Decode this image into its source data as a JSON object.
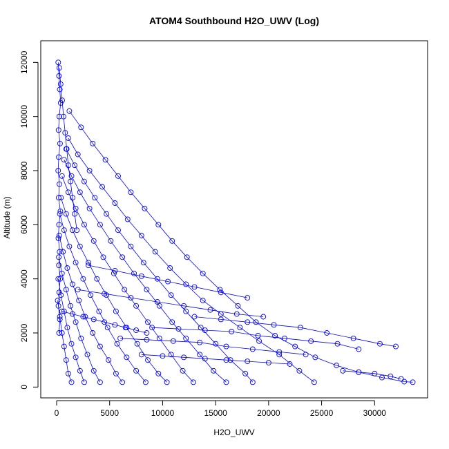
{
  "chart_data": {
    "type": "scatter",
    "title": "ATOM4 Southbound H2O_UWV (Log)",
    "xlabel": "H2O_UWV",
    "ylabel": "Altitude (m)",
    "xlim": [
      -1500,
      35000
    ],
    "ylim": [
      -400,
      12800
    ],
    "xticks": [
      0,
      5000,
      10000,
      15000,
      20000,
      25000,
      30000
    ],
    "yticks": [
      0,
      2000,
      4000,
      6000,
      8000,
      10000,
      12000
    ],
    "grid": false,
    "legend": "none",
    "marker": "open-circle",
    "connected": true,
    "color": "#0000ff",
    "series": [
      {
        "x": [
          1200,
          2300,
          3400,
          4600,
          5800,
          7000,
          8300,
          9600,
          10900,
          12300,
          13800,
          15400,
          17100,
          18800,
          20600,
          22500,
          24400,
          26400,
          28500,
          30700,
          32800,
          33600
        ],
        "y": [
          10200,
          9600,
          9000,
          8400,
          7800,
          7200,
          6600,
          6000,
          5400,
          4800,
          4200,
          3600,
          3000,
          2400,
          1900,
          1500,
          1100,
          800,
          550,
          350,
          200,
          180
        ]
      },
      {
        "x": [
          1100,
          2000,
          3100,
          4300,
          5500,
          6700,
          8000,
          9300,
          10700,
          12200,
          13800,
          15500,
          17300,
          19100,
          21000,
          22900,
          24300
        ],
        "y": [
          9200,
          8600,
          8000,
          7400,
          6800,
          6200,
          5600,
          5000,
          4400,
          3800,
          3200,
          2700,
          2200,
          1700,
          1200,
          600,
          180
        ]
      },
      {
        "x": [
          900,
          1700,
          2600,
          3600,
          4700,
          5800,
          7000,
          8200,
          9500,
          10800,
          12200,
          13600,
          15000,
          16400,
          17800,
          18500
        ],
        "y": [
          8800,
          8200,
          7600,
          7000,
          6400,
          5800,
          5200,
          4600,
          4000,
          3400,
          2800,
          2200,
          1600,
          1000,
          500,
          180
        ]
      },
      {
        "x": [
          700,
          1400,
          2200,
          3100,
          4100,
          5100,
          6200,
          7300,
          8500,
          9700,
          10900,
          12200,
          13500,
          14800,
          16000
        ],
        "y": [
          8400,
          7800,
          7200,
          6600,
          6000,
          5400,
          4800,
          4200,
          3600,
          3000,
          2400,
          1800,
          1200,
          600,
          180
        ]
      },
      {
        "x": [
          500,
          1100,
          1800,
          2600,
          3500,
          4400,
          5400,
          6400,
          7500,
          8600,
          9700,
          10800,
          11900,
          12900
        ],
        "y": [
          7800,
          7200,
          6600,
          6000,
          5400,
          4800,
          4200,
          3600,
          3000,
          2400,
          1800,
          1200,
          600,
          180
        ]
      },
      {
        "x": [
          400,
          900,
          1500,
          2200,
          3000,
          3800,
          4700,
          5600,
          6600,
          7600,
          8600,
          9600,
          10400
        ],
        "y": [
          7000,
          6400,
          5800,
          5200,
          4600,
          4000,
          3400,
          2800,
          2200,
          1600,
          1000,
          500,
          180
        ]
      },
      {
        "x": [
          300,
          700,
          1200,
          1800,
          2500,
          3200,
          4000,
          4800,
          5700,
          6600,
          7500,
          8400
        ],
        "y": [
          6400,
          5800,
          5200,
          4600,
          4000,
          3400,
          2800,
          2200,
          1600,
          1100,
          600,
          180
        ]
      },
      {
        "x": [
          250,
          600,
          1000,
          1500,
          2100,
          2700,
          3400,
          4100,
          4900,
          5600,
          6200
        ],
        "y": [
          5600,
          5000,
          4400,
          3800,
          3200,
          2600,
          2000,
          1500,
          1000,
          500,
          180
        ]
      },
      {
        "x": [
          200,
          500,
          900,
          1300,
          1800,
          2300,
          2900,
          3500,
          4100
        ],
        "y": [
          4800,
          4200,
          3600,
          3000,
          2400,
          1800,
          1200,
          600,
          180
        ]
      },
      {
        "x": [
          150,
          400,
          700,
          1000,
          1400,
          1800,
          2200,
          2600
        ],
        "y": [
          4000,
          3400,
          2800,
          2200,
          1600,
          1100,
          600,
          180
        ]
      },
      {
        "x": [
          100,
          300,
          500,
          700,
          900,
          1100,
          1400
        ],
        "y": [
          3200,
          2600,
          2000,
          1500,
          1000,
          500,
          180
        ]
      },
      {
        "x": [
          150,
          220,
          300,
          380,
          250,
          180,
          320,
          200,
          140,
          260,
          190,
          350,
          220,
          160,
          280,
          210,
          330,
          240,
          170,
          300,
          230
        ],
        "y": [
          12000,
          11500,
          11000,
          10500,
          10000,
          9500,
          9000,
          8500,
          8000,
          7500,
          7000,
          6500,
          6000,
          5500,
          5000,
          4500,
          4000,
          3500,
          3000,
          2500,
          2000
        ]
      },
      {
        "x": [
          250,
          380,
          520,
          650,
          800,
          950,
          1100,
          1300,
          1500,
          1700,
          1900
        ],
        "y": [
          11800,
          11200,
          10600,
          10000,
          9400,
          8800,
          8200,
          7600,
          7000,
          6400,
          5800
        ]
      },
      {
        "x": [
          13000,
          15500,
          18000,
          20500,
          23000,
          25500,
          28000,
          30500,
          32000
        ],
        "y": [
          2600,
          2500,
          2400,
          2300,
          2200,
          2000,
          1800,
          1600,
          1500
        ]
      },
      {
        "x": [
          9000,
          11500,
          14000,
          16500,
          19000,
          21500,
          24000,
          26500,
          28500
        ],
        "y": [
          2200,
          2150,
          2100,
          2050,
          1900,
          1800,
          1700,
          1600,
          1400
        ]
      },
      {
        "x": [
          6000,
          8500,
          11000,
          13500,
          16000,
          18500,
          21000,
          23500
        ],
        "y": [
          1800,
          1750,
          1700,
          1650,
          1500,
          1400,
          1300,
          1200
        ]
      },
      {
        "x": [
          3000,
          5500,
          8000,
          10500,
          13000,
          15500,
          18000
        ],
        "y": [
          4500,
          4300,
          4100,
          3900,
          3700,
          3500,
          3300
        ]
      },
      {
        "x": [
          2000,
          4500,
          7000,
          9500,
          12000,
          14500,
          17000,
          19500
        ],
        "y": [
          3600,
          3450,
          3300,
          3150,
          3000,
          2850,
          2700,
          2600
        ]
      },
      {
        "x": [
          27000,
          28500,
          30000,
          31500,
          32500
        ],
        "y": [
          600,
          550,
          500,
          400,
          300
        ]
      },
      {
        "x": [
          8000,
          10000,
          12000,
          14000,
          16000,
          18000,
          20000,
          22000
        ],
        "y": [
          1200,
          1150,
          1100,
          1050,
          1000,
          950,
          900,
          850
        ]
      },
      {
        "x": [
          500,
          1500,
          2500,
          3500,
          4500,
          5500,
          6500,
          7500,
          8500
        ],
        "y": [
          2800,
          2700,
          2600,
          2500,
          2400,
          2300,
          2200,
          2100,
          2000
        ]
      }
    ]
  }
}
